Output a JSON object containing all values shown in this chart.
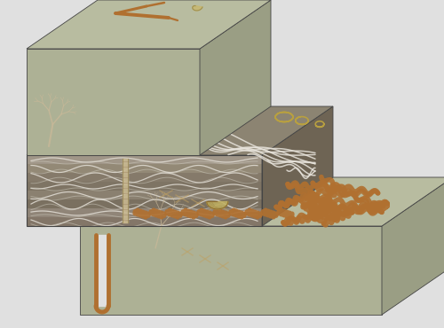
{
  "background_color": "#e0e0e0",
  "fig_width": 5.0,
  "fig_height": 3.7,
  "dpi": 100,
  "top_block": {
    "color_top": "#b8bcA0",
    "color_front": "#adb195",
    "color_right": "#9a9e84",
    "color_left": "#9a9e84"
  },
  "mid_block": {
    "color_top": "#8c8472",
    "color_layer_colors": [
      "#a09688",
      "#938976",
      "#857a6a",
      "#7e7464",
      "#8a8070",
      "#7a7060",
      "#908578",
      "#837668"
    ],
    "color_front_outline": "#555555",
    "color_right": "#6e6454"
  },
  "bot_block": {
    "color_top": "#b8bcA0",
    "color_front": "#adb195",
    "color_right": "#9a9e84"
  },
  "striation_light": "#d0cdc0",
  "striation_white": "#e8e4dc",
  "copper": "#b07030",
  "copper_light": "#c8a870",
  "copper_pale": "#c8b898",
  "gold": "#b8a040",
  "tan_burrow": "#c0a060"
}
